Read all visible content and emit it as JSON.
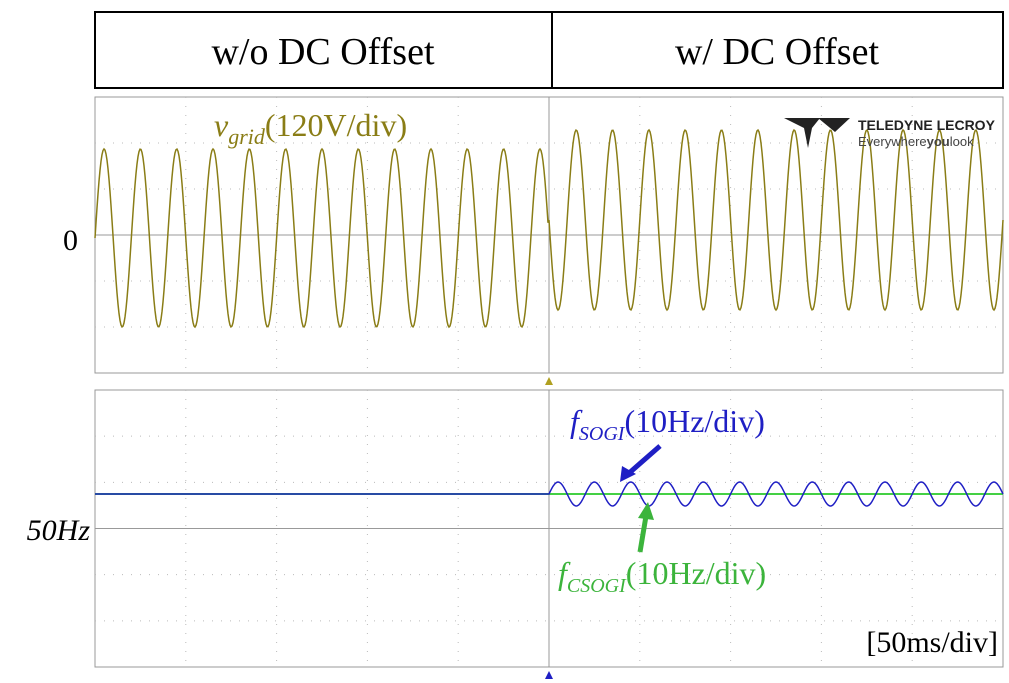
{
  "header": {
    "left": "w/o DC Offset",
    "right": "w/ DC Offset"
  },
  "top_panel": {
    "signal": {
      "main": "v",
      "sub": "grid",
      "rest": "(120V/div)"
    },
    "level_label": "0",
    "logo": {
      "brand": "TELEDYNE LECROY",
      "tagline_a": "Everywhere",
      "tagline_b": "you",
      "tagline_c": "look"
    }
  },
  "bottom_panel": {
    "level_label": "50Hz",
    "sogi": {
      "main": "f",
      "sub": "SOGI",
      "rest": "(10Hz/div)"
    },
    "csogi": {
      "main": "f",
      "sub": "CSOGI",
      "rest": "(10Hz/div)"
    },
    "timebase": "[50ms/div]"
  }
}
